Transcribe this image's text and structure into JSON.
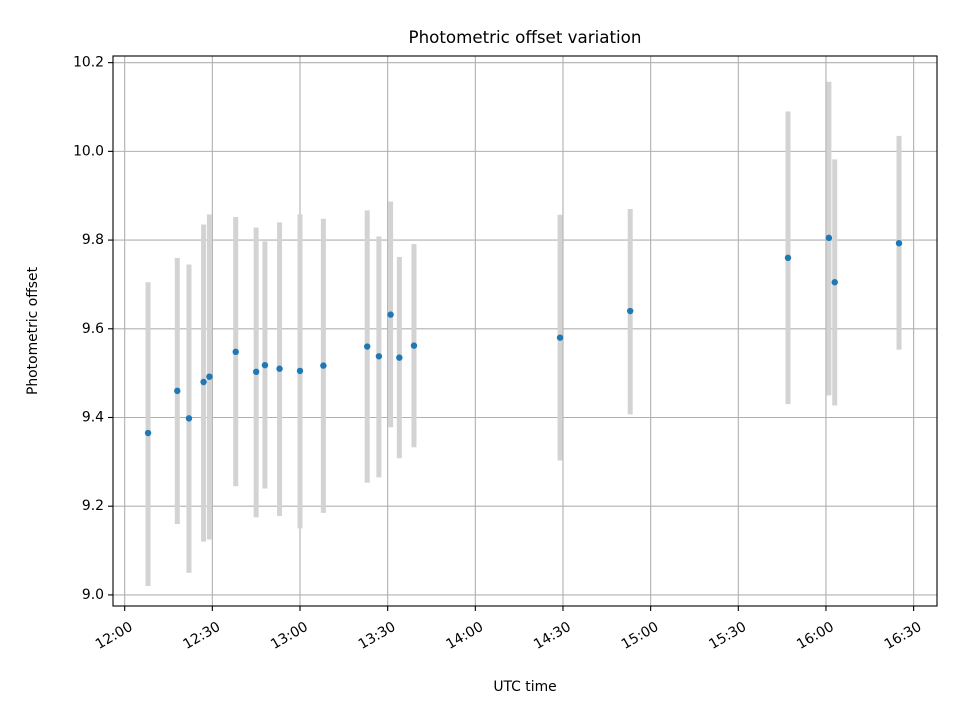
{
  "chart_data": {
    "type": "scatter",
    "title": "Photometric offset variation",
    "xlabel": "UTC time",
    "ylabel": "Photometric offset",
    "x_axis_type": "time",
    "xlim": [
      "11:56",
      "16:38"
    ],
    "ylim": [
      8.975,
      10.215
    ],
    "grid": true,
    "x_ticks": [
      "12:00",
      "12:30",
      "13:00",
      "13:30",
      "14:00",
      "14:30",
      "15:00",
      "15:30",
      "16:00",
      "16:30"
    ],
    "y_ticks": [
      9.0,
      9.2,
      9.4,
      9.6,
      9.8,
      10.0,
      10.2
    ],
    "y_tick_labels": [
      "9.0",
      "9.2",
      "9.4",
      "9.6",
      "9.8",
      "10.0",
      "10.2"
    ],
    "colors": {
      "point": "#1f77b4",
      "errorbar": "#d3d3d3",
      "grid": "#b0b0b0"
    },
    "points": [
      {
        "x": "12:08",
        "y": 9.365,
        "ylow": 9.02,
        "yhigh": 9.705
      },
      {
        "x": "12:18",
        "y": 9.46,
        "ylow": 9.16,
        "yhigh": 9.76
      },
      {
        "x": "12:22",
        "y": 9.398,
        "ylow": 9.05,
        "yhigh": 9.745
      },
      {
        "x": "12:27",
        "y": 9.48,
        "ylow": 9.12,
        "yhigh": 9.835
      },
      {
        "x": "12:29",
        "y": 9.492,
        "ylow": 9.125,
        "yhigh": 9.858
      },
      {
        "x": "12:38",
        "y": 9.548,
        "ylow": 9.245,
        "yhigh": 9.852
      },
      {
        "x": "12:45",
        "y": 9.503,
        "ylow": 9.175,
        "yhigh": 9.828
      },
      {
        "x": "12:48",
        "y": 9.518,
        "ylow": 9.24,
        "yhigh": 9.797
      },
      {
        "x": "12:53",
        "y": 9.51,
        "ylow": 9.178,
        "yhigh": 9.84
      },
      {
        "x": "13:00",
        "y": 9.505,
        "ylow": 9.15,
        "yhigh": 9.858
      },
      {
        "x": "13:08",
        "y": 9.517,
        "ylow": 9.185,
        "yhigh": 9.848
      },
      {
        "x": "13:23",
        "y": 9.56,
        "ylow": 9.253,
        "yhigh": 9.867
      },
      {
        "x": "13:27",
        "y": 9.538,
        "ylow": 9.265,
        "yhigh": 9.808
      },
      {
        "x": "13:31",
        "y": 9.632,
        "ylow": 9.378,
        "yhigh": 9.887
      },
      {
        "x": "13:34",
        "y": 9.535,
        "ylow": 9.308,
        "yhigh": 9.762
      },
      {
        "x": "13:39",
        "y": 9.562,
        "ylow": 9.333,
        "yhigh": 9.791
      },
      {
        "x": "14:29",
        "y": 9.58,
        "ylow": 9.303,
        "yhigh": 9.857
      },
      {
        "x": "14:53",
        "y": 9.64,
        "ylow": 9.407,
        "yhigh": 9.87
      },
      {
        "x": "15:47",
        "y": 9.76,
        "ylow": 9.43,
        "yhigh": 10.09
      },
      {
        "x": "16:01",
        "y": 9.805,
        "ylow": 9.45,
        "yhigh": 10.157
      },
      {
        "x": "16:03",
        "y": 9.705,
        "ylow": 9.427,
        "yhigh": 9.982
      },
      {
        "x": "16:25",
        "y": 9.793,
        "ylow": 9.553,
        "yhigh": 10.035
      }
    ]
  }
}
